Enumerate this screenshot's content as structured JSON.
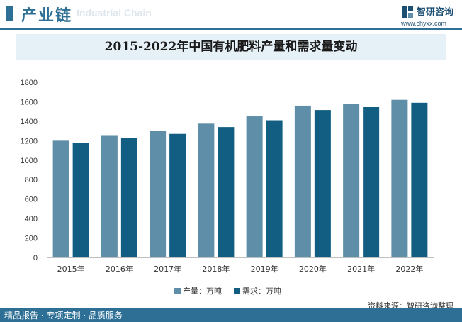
{
  "header": {
    "title": "产业链",
    "ghost_text": "Industrial Chain",
    "logo_name": "智研咨询",
    "logo_url": "www.chyxx.com"
  },
  "footer": {
    "left_text": "精品报告 · 专项定制 · 品质服务",
    "source": "资料来源：智研咨询整理"
  },
  "colors": {
    "brand": "#2e6f95",
    "production": "#5f8fa8",
    "demand": "#115e82"
  },
  "chart_data": {
    "type": "bar",
    "title": "2015-2022年中国有机肥料产量和需求量变动",
    "categories": [
      "2015年",
      "2016年",
      "2017年",
      "2018年",
      "2019年",
      "2020年",
      "2021年",
      "2022年"
    ],
    "series": [
      {
        "name": "产量：万吨",
        "values": [
          1200,
          1250,
          1300,
          1375,
          1450,
          1560,
          1580,
          1620
        ]
      },
      {
        "name": "需求：万吨",
        "values": [
          1180,
          1230,
          1270,
          1340,
          1410,
          1515,
          1545,
          1590
        ]
      }
    ],
    "ylim": [
      0,
      1800
    ],
    "yticks": [
      0,
      200,
      400,
      600,
      800,
      1000,
      1200,
      1400,
      1600,
      1800
    ],
    "xlabel": "",
    "ylabel": "",
    "grid": false,
    "legend": "bottom-center"
  }
}
